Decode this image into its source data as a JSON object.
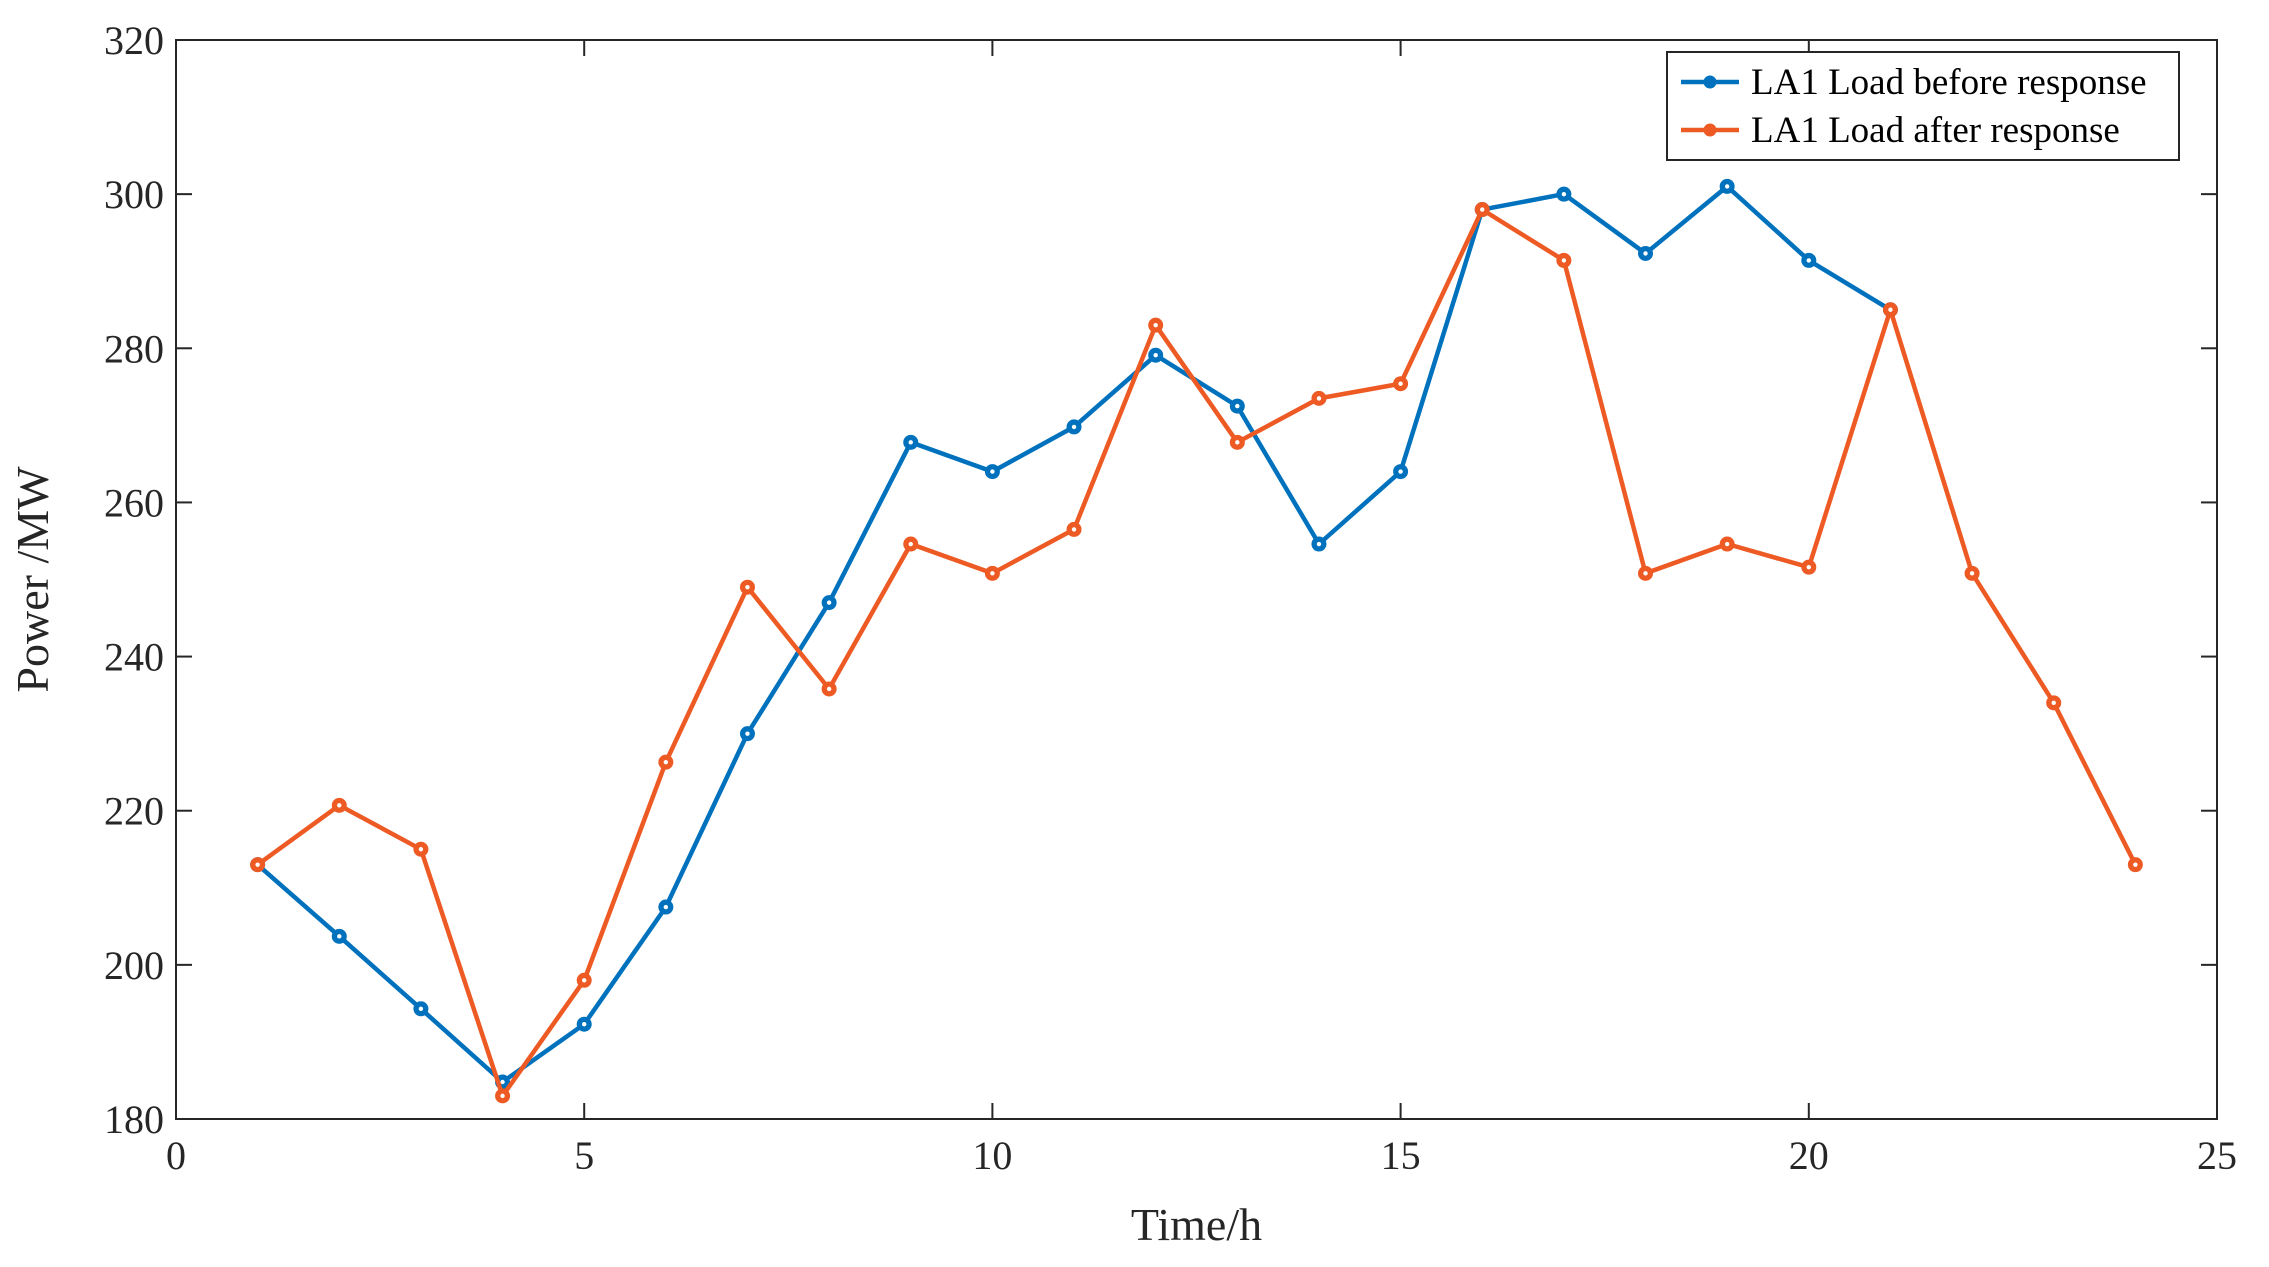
{
  "chart_data": {
    "type": "line",
    "xlabel": "Time/h",
    "ylabel": "Power /MW",
    "xlim": [
      0,
      25
    ],
    "ylim": [
      180,
      320
    ],
    "xticks": [
      0,
      5,
      10,
      15,
      20,
      25
    ],
    "yticks": [
      180,
      200,
      220,
      240,
      260,
      280,
      300,
      320
    ],
    "grid": false,
    "legend_position": "top-right",
    "series": [
      {
        "name": "LA1 Load before response",
        "color": "#0072BD",
        "x": [
          1,
          2,
          3,
          4,
          5,
          6,
          7,
          8,
          9,
          10,
          11,
          12,
          13,
          14,
          15,
          16,
          17,
          18,
          19,
          20,
          21
        ],
        "y": [
          213,
          203.7,
          194.3,
          184.8,
          192.3,
          207.5,
          230,
          247,
          267.8,
          264,
          269.8,
          279.1,
          272.5,
          254.6,
          264,
          298,
          300,
          292.3,
          301,
          291.4,
          285
        ]
      },
      {
        "name": "LA1 Load after response",
        "color": "#EE5A24",
        "x": [
          1,
          2,
          3,
          4,
          5,
          6,
          7,
          8,
          9,
          10,
          11,
          12,
          13,
          14,
          15,
          16,
          17,
          18,
          19,
          20,
          21,
          22,
          23,
          24
        ],
        "y": [
          213,
          220.7,
          215,
          183,
          198,
          226.3,
          249,
          235.8,
          254.6,
          250.8,
          256.5,
          283,
          267.8,
          273.5,
          275.4,
          298,
          291.4,
          250.8,
          254.6,
          251.6,
          285,
          250.8,
          234,
          213
        ]
      }
    ]
  }
}
